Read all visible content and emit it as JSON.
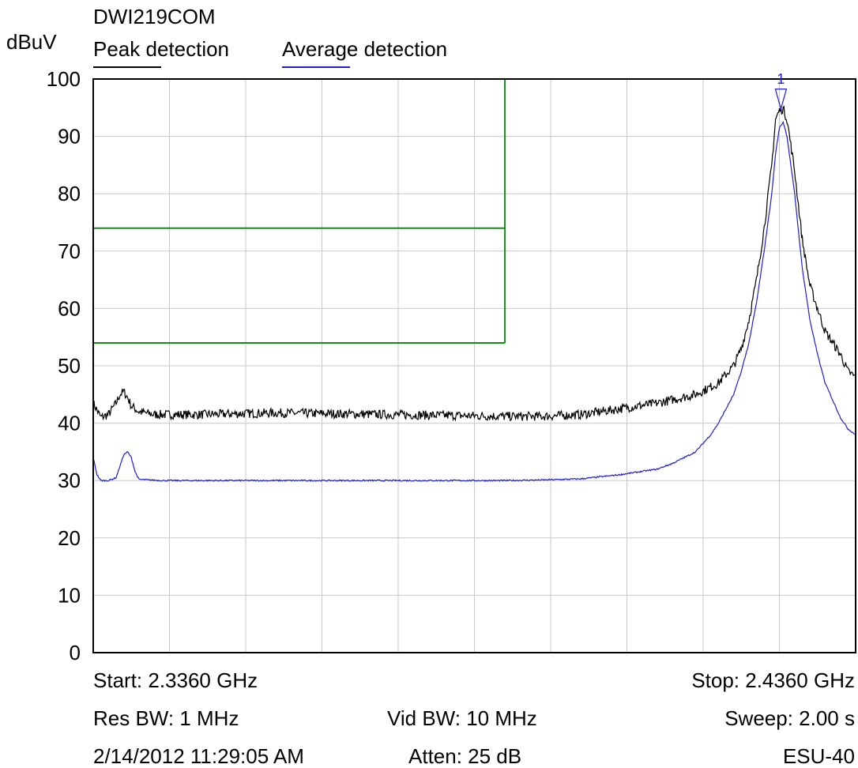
{
  "chart_data": {
    "type": "line",
    "title": "DWI219COM",
    "ylabel": "dBuV",
    "ylim": [
      0,
      100
    ],
    "xlim_ghz": [
      2.336,
      2.436
    ],
    "y_ticks": [
      "0",
      "10",
      "20",
      "30",
      "40",
      "50",
      "60",
      "70",
      "80",
      "90",
      "100"
    ],
    "grid": true,
    "legend_placement": "top",
    "colors": {
      "peak": "#000000",
      "average": "#1f1fd0",
      "limit": "#1a8a1a",
      "grid": "#c8c8c8"
    },
    "series": [
      {
        "name": "Peak detection",
        "x": [
          2.336,
          2.337,
          2.338,
          2.339,
          2.3395,
          2.34,
          2.3405,
          2.341,
          2.342,
          2.344,
          2.35,
          2.36,
          2.37,
          2.38,
          2.39,
          2.395,
          2.4,
          2.405,
          2.41,
          2.415,
          2.418,
          2.42,
          2.421,
          2.422,
          2.423,
          2.424,
          2.425,
          2.4255,
          2.426,
          2.4265,
          2.427,
          2.428,
          2.429,
          2.43,
          2.432,
          2.434,
          2.435,
          2.436
        ],
        "y": [
          43.5,
          41,
          41.5,
          43.5,
          45,
          45.5,
          44.5,
          43,
          42,
          41.5,
          41.5,
          41.8,
          41.6,
          41.4,
          41.2,
          41.2,
          41.5,
          42.5,
          43.5,
          45,
          47,
          50,
          53,
          58,
          65,
          74,
          85,
          93,
          94.5,
          94.8,
          93,
          84,
          72,
          64,
          56,
          52,
          49,
          48
        ]
      },
      {
        "name": "Average detection",
        "x": [
          2.336,
          2.3365,
          2.337,
          2.338,
          2.339,
          2.3395,
          2.34,
          2.3405,
          2.341,
          2.3415,
          2.342,
          2.345,
          2.35,
          2.36,
          2.37,
          2.38,
          2.39,
          2.395,
          2.4,
          2.405,
          2.41,
          2.412,
          2.415,
          2.417,
          2.418,
          2.42,
          2.421,
          2.422,
          2.423,
          2.424,
          2.425,
          2.4255,
          2.426,
          2.4265,
          2.427,
          2.428,
          2.429,
          2.43,
          2.431,
          2.432,
          2.433,
          2.434,
          2.435,
          2.436
        ],
        "y": [
          34,
          31,
          30,
          30,
          30.5,
          32.5,
          34.5,
          35,
          34,
          31.5,
          30.2,
          30,
          30,
          30,
          30,
          30,
          30,
          30.1,
          30.3,
          31,
          32,
          33,
          35,
          38,
          40,
          45,
          49,
          54,
          61,
          70,
          80,
          87,
          91.5,
          92.5,
          90,
          80,
          67,
          58,
          52,
          47,
          44,
          41,
          39,
          38
        ]
      }
    ],
    "limit_lines": [
      {
        "x": [
          2.336,
          2.39
        ],
        "y": [
          74,
          74
        ]
      },
      {
        "x": [
          2.336,
          2.39
        ],
        "y": [
          54,
          54
        ]
      },
      {
        "x": [
          2.39,
          2.39
        ],
        "y": [
          54,
          100
        ]
      }
    ],
    "marker": {
      "label": "1",
      "x": 2.4262,
      "y": 94.8
    }
  },
  "footer": {
    "start": "Start: 2.3360 GHz",
    "stop": "Stop: 2.4360 GHz",
    "res_bw": "Res BW: 1 MHz",
    "vid_bw": "Vid BW: 10 MHz",
    "sweep": "Sweep: 2.00 s",
    "date": "2/14/2012 11:29:05 AM",
    "atten": "Atten: 25 dB",
    "model": "ESU-40"
  }
}
